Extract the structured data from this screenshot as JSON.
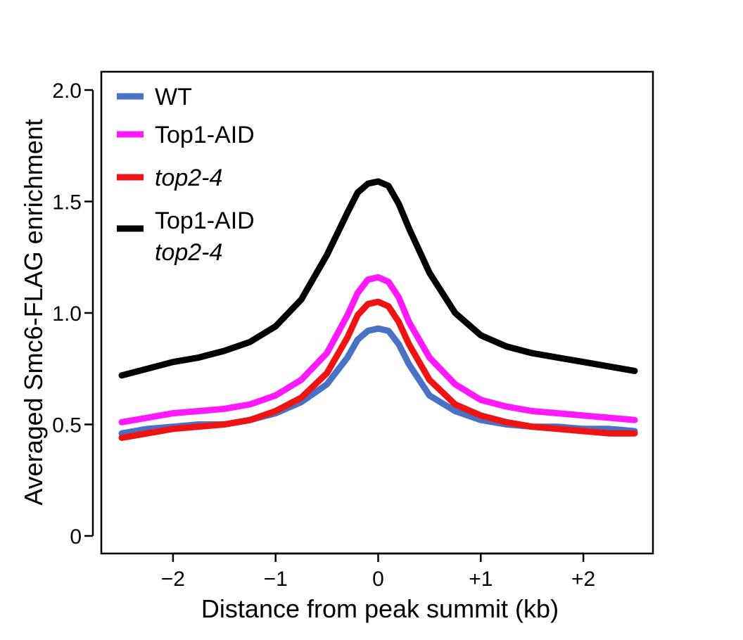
{
  "chart_data": {
    "type": "line",
    "title": "",
    "xlabel": "Distance from peak summit (kb)",
    "ylabel": "Averaged Smc6-FLAG enrichment",
    "xlim": [
      -2.5,
      2.5
    ],
    "ylim": [
      0,
      2.0
    ],
    "xticks": [
      -2,
      -1,
      0,
      1,
      2
    ],
    "xtick_labels": [
      "−2",
      "−1",
      "0",
      "+1",
      "+2"
    ],
    "yticks": [
      0,
      0.5,
      1.0,
      1.5,
      2.0
    ],
    "ytick_labels": [
      "0",
      "0.5",
      "1.0",
      "1.5",
      "2.0"
    ],
    "grid": false,
    "legend_position": "top-left",
    "x": [
      -2.5,
      -2.25,
      -2.0,
      -1.75,
      -1.5,
      -1.25,
      -1.0,
      -0.75,
      -0.5,
      -0.3,
      -0.2,
      -0.1,
      0.0,
      0.1,
      0.2,
      0.3,
      0.5,
      0.75,
      1.0,
      1.25,
      1.5,
      1.75,
      2.0,
      2.25,
      2.5
    ],
    "series": [
      {
        "name": "WT",
        "color": "#4a72c4",
        "italic": false,
        "values": [
          0.46,
          0.48,
          0.49,
          0.5,
          0.5,
          0.52,
          0.55,
          0.6,
          0.68,
          0.8,
          0.88,
          0.92,
          0.93,
          0.92,
          0.86,
          0.77,
          0.63,
          0.56,
          0.52,
          0.5,
          0.49,
          0.49,
          0.48,
          0.48,
          0.47
        ]
      },
      {
        "name": "Top1-AID",
        "color": "#ff19ff",
        "italic": false,
        "values": [
          0.51,
          0.53,
          0.55,
          0.56,
          0.57,
          0.59,
          0.63,
          0.7,
          0.82,
          0.99,
          1.09,
          1.15,
          1.16,
          1.14,
          1.07,
          0.96,
          0.8,
          0.68,
          0.61,
          0.58,
          0.56,
          0.55,
          0.54,
          0.53,
          0.52
        ]
      },
      {
        "name": "top2-4",
        "color": "#ef1414",
        "italic": true,
        "values": [
          0.44,
          0.46,
          0.48,
          0.49,
          0.5,
          0.52,
          0.56,
          0.62,
          0.73,
          0.89,
          0.99,
          1.04,
          1.05,
          1.03,
          0.96,
          0.86,
          0.7,
          0.59,
          0.54,
          0.51,
          0.49,
          0.48,
          0.47,
          0.46,
          0.46
        ]
      },
      {
        "name": "Top1-AID",
        "name_line2": "top2-4",
        "color": "#000000",
        "italic": false,
        "values": [
          0.72,
          0.75,
          0.78,
          0.8,
          0.83,
          0.87,
          0.94,
          1.06,
          1.26,
          1.45,
          1.54,
          1.58,
          1.59,
          1.57,
          1.49,
          1.38,
          1.18,
          1.0,
          0.9,
          0.85,
          0.82,
          0.8,
          0.78,
          0.76,
          0.74
        ]
      }
    ]
  }
}
